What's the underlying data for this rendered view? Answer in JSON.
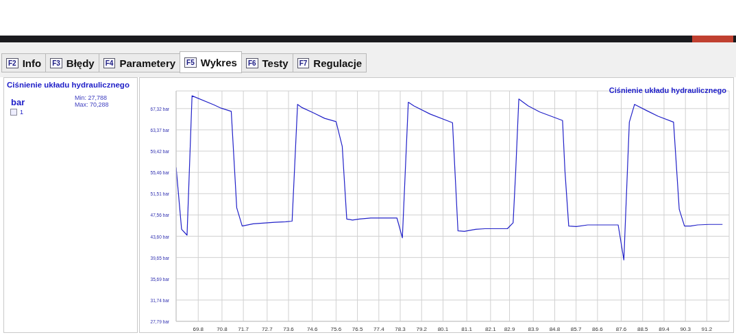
{
  "chart_data": {
    "type": "line",
    "title": "Ciśnienie układu hydraulicznego",
    "annotations": [
      "bar",
      "Min: 27,788",
      "Max: 70,288",
      "1",
      "F2",
      "Info",
      "F3",
      "Błędy",
      "F4",
      "Parametery",
      "F5",
      "Wykres",
      "F6",
      "Testy",
      "F7",
      "Regulacje"
    ],
    "x": [
      68.87,
      69.1,
      69.33,
      69.54,
      70.47,
      70.76,
      71.19,
      71.42,
      71.65,
      72.11,
      73.02,
      73.48,
      73.75,
      73.98,
      74.17,
      74.66,
      75.12,
      75.6,
      75.86,
      76.05,
      76.29,
      76.58,
      77.06,
      78.16,
      78.39,
      78.64,
      78.88,
      79.56,
      80.5,
      80.73,
      81.0,
      81.48,
      81.87,
      82.81,
      83.05,
      83.16,
      83.29,
      83.69,
      84.17,
      84.65,
      85.13,
      85.23,
      85.39,
      85.71,
      86.19,
      86.53,
      87.47,
      87.71,
      87.94,
      88.16,
      88.69,
      89.15,
      89.8,
      90.04,
      90.26,
      90.52,
      90.81,
      91.29,
      91.86
    ],
    "series": [
      {
        "name": "Ciśnienie układu hydraulicznego",
        "color": "#2020c8",
        "values": [
          56.4,
          44.9,
          43.8,
          69.7,
          68.0,
          67.4,
          66.8,
          48.9,
          45.5,
          45.9,
          46.2,
          46.3,
          46.4,
          68.1,
          67.5,
          66.5,
          65.5,
          64.9,
          60.3,
          46.8,
          46.6,
          46.8,
          47.0,
          47.0,
          43.3,
          68.5,
          67.8,
          66.3,
          64.7,
          44.6,
          44.5,
          44.9,
          45.0,
          45.0,
          46.1,
          55.8,
          69.1,
          67.8,
          66.7,
          65.9,
          65.1,
          55.8,
          45.5,
          45.4,
          45.7,
          45.7,
          45.7,
          39.2,
          64.8,
          68.1,
          66.9,
          65.9,
          64.8,
          48.6,
          45.5,
          45.5,
          45.7,
          45.8,
          45.8
        ]
      }
    ],
    "xlim": [
      68.87,
      92.14
    ],
    "xticks": [
      {
        "value": 69.8,
        "label": "69,8"
      },
      {
        "value": 70.8,
        "label": "70,8"
      },
      {
        "value": 71.7,
        "label": "71,7"
      },
      {
        "value": 72.7,
        "label": "72,7"
      },
      {
        "value": 73.6,
        "label": "73,6"
      },
      {
        "value": 74.6,
        "label": "74,6"
      },
      {
        "value": 75.6,
        "label": "75,6"
      },
      {
        "value": 76.5,
        "label": "76,5"
      },
      {
        "value": 77.4,
        "label": "77,4"
      },
      {
        "value": 78.3,
        "label": "78,3"
      },
      {
        "value": 79.2,
        "label": "79,2"
      },
      {
        "value": 80.1,
        "label": "80,1"
      },
      {
        "value": 81.1,
        "label": "81,1"
      },
      {
        "value": 82.1,
        "label": "82,1"
      },
      {
        "value": 82.9,
        "label": "82,9"
      },
      {
        "value": 83.9,
        "label": "83,9"
      },
      {
        "value": 84.8,
        "label": "84,8"
      },
      {
        "value": 85.7,
        "label": "85,7"
      },
      {
        "value": 86.6,
        "label": "86,6"
      },
      {
        "value": 87.6,
        "label": "87,6"
      },
      {
        "value": 88.5,
        "label": "88,5"
      },
      {
        "value": 89.4,
        "label": "89,4"
      },
      {
        "value": 90.3,
        "label": "90,3"
      },
      {
        "value": 91.2,
        "label": "91,2"
      }
    ],
    "ylim": [
      27.79,
      70.6
    ],
    "yticks": [
      {
        "value": 27.79,
        "label": "27,79 bar"
      },
      {
        "value": 31.74,
        "label": "31,74 bar"
      },
      {
        "value": 35.69,
        "label": "35,69 bar"
      },
      {
        "value": 39.65,
        "label": "39,65 bar"
      },
      {
        "value": 43.6,
        "label": "43,60 bar"
      },
      {
        "value": 47.56,
        "label": "47,56 bar"
      },
      {
        "value": 51.51,
        "label": "51,51 bar"
      },
      {
        "value": 55.46,
        "label": "55,46 bar"
      },
      {
        "value": 59.42,
        "label": "59,42 bar"
      },
      {
        "value": 63.37,
        "label": "63,37 bar"
      },
      {
        "value": 67.32,
        "label": "67,32 bar"
      }
    ],
    "grid": true,
    "legend": "top right",
    "marker": "none",
    "line_style": "solid"
  }
}
